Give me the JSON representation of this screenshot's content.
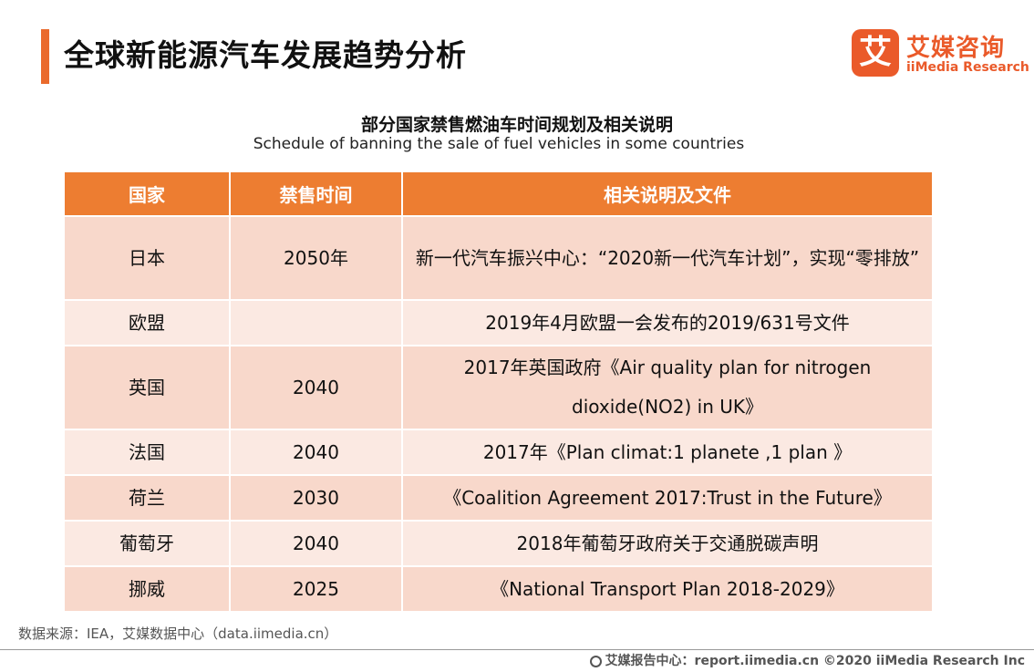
{
  "header": {
    "title": "全球新能源汽车发展趋势分析",
    "logo": {
      "mark": "艾",
      "cn": "艾媒咨询",
      "en": "iiMedia Research"
    }
  },
  "table": {
    "title": "部分国家禁售燃油车时间规划及相关说明",
    "subtitle": "Schedule of banning the sale of fuel vehicles in some countries",
    "columns": [
      "国家",
      "禁售时间",
      "相关说明及文件"
    ],
    "rows": [
      {
        "country": "日本",
        "year": "2050年",
        "note": "新一代汽车振兴中心：“2020新一代汽车计划”，实现“零排放”"
      },
      {
        "country": "欧盟",
        "year": "",
        "note": "2019年4月欧盟一会发布的2019/631号文件"
      },
      {
        "country": "英国",
        "year": "2040",
        "note": "2017年英国政府《Air quality plan for nitrogen dioxide(NO2) in UK》"
      },
      {
        "country": "法国",
        "year": "2040",
        "note": "2017年《Plan climat:1 planete ,1 plan 》"
      },
      {
        "country": "荷兰",
        "year": "2030",
        "note": "《Coalition Agreement 2017:Trust in the Future》"
      },
      {
        "country": "葡萄牙",
        "year": "2040",
        "note": "2018年葡萄牙政府关于交通脱碳声明"
      },
      {
        "country": "挪威",
        "year": "2025",
        "note": "《National Transport Plan 2018-2029》"
      }
    ]
  },
  "source": "数据来源：IEA，艾媒数据中心（data.iimedia.cn）",
  "footer": "艾媒报告中心：report.iimedia.cn  ©2020  iiMedia Research  Inc"
}
